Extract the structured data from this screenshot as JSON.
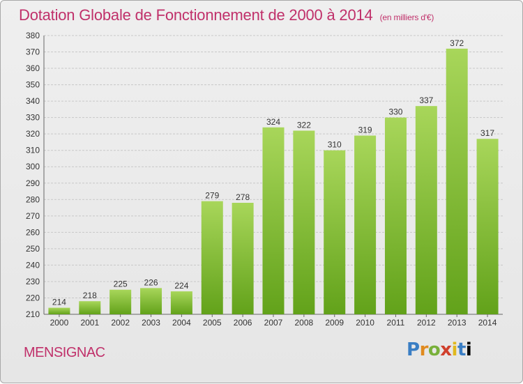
{
  "title": "Dotation Globale de Fonctionnement de 2000 à 2014",
  "title_unit": "(en milliers d'€)",
  "commune": "MENSIGNAC",
  "logo_letters": [
    "P",
    "r",
    "o",
    "x",
    "i",
    "t",
    "i"
  ],
  "colors": {
    "title": "#c0306a",
    "bar_top": "#a8d65a",
    "bar_bottom": "#62a21a",
    "grid": "#c8c8c8"
  },
  "chart_data": {
    "type": "bar",
    "categories": [
      "2000",
      "2001",
      "2002",
      "2003",
      "2004",
      "2005",
      "2006",
      "2007",
      "2008",
      "2009",
      "2010",
      "2011",
      "2012",
      "2013",
      "2014"
    ],
    "values": [
      214,
      218,
      225,
      226,
      224,
      279,
      278,
      324,
      322,
      310,
      319,
      330,
      337,
      372,
      317
    ],
    "ylim": [
      210,
      380
    ],
    "yticks": [
      210,
      220,
      230,
      240,
      250,
      260,
      270,
      280,
      290,
      300,
      310,
      320,
      330,
      340,
      350,
      360,
      370,
      380
    ],
    "grid": true
  }
}
